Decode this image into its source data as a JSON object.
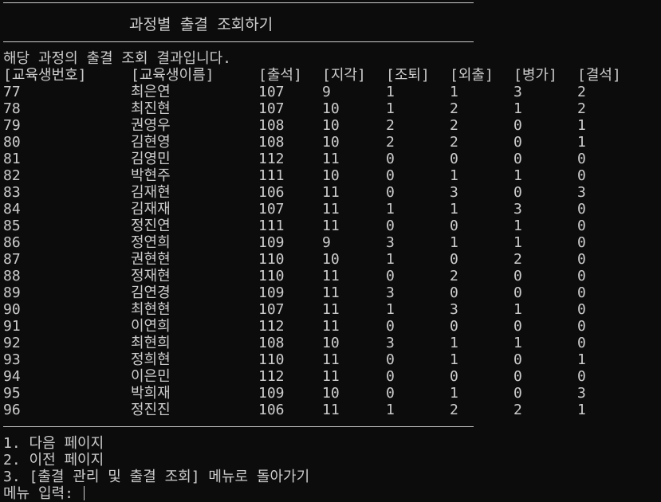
{
  "header": {
    "title": "과정별 출결 조회하기",
    "result_message": "해당 과정의 출결 조회 결과입니다."
  },
  "table": {
    "columns": [
      "[교육생번호]",
      "[교육생이름]",
      "[출석]",
      "[지각]",
      "[조퇴]",
      "[외출]",
      "[병가]",
      "[결석]"
    ],
    "rows": [
      [
        "77",
        "최은연",
        "107",
        "9",
        "1",
        "1",
        "3",
        "2"
      ],
      [
        "78",
        "최진현",
        "107",
        "10",
        "1",
        "2",
        "1",
        "2"
      ],
      [
        "79",
        "권영우",
        "108",
        "10",
        "2",
        "2",
        "0",
        "1"
      ],
      [
        "80",
        "김현영",
        "108",
        "10",
        "2",
        "2",
        "0",
        "1"
      ],
      [
        "81",
        "김영민",
        "112",
        "11",
        "0",
        "0",
        "0",
        "0"
      ],
      [
        "82",
        "박현주",
        "111",
        "10",
        "0",
        "1",
        "1",
        "0"
      ],
      [
        "83",
        "김재현",
        "106",
        "11",
        "0",
        "3",
        "0",
        "3"
      ],
      [
        "84",
        "김재재",
        "107",
        "11",
        "1",
        "1",
        "3",
        "0"
      ],
      [
        "85",
        "정진연",
        "111",
        "11",
        "0",
        "0",
        "1",
        "0"
      ],
      [
        "86",
        "정연희",
        "109",
        "9",
        "3",
        "1",
        "1",
        "0"
      ],
      [
        "87",
        "권현현",
        "110",
        "10",
        "1",
        "0",
        "2",
        "0"
      ],
      [
        "88",
        "정재현",
        "110",
        "11",
        "0",
        "2",
        "0",
        "0"
      ],
      [
        "89",
        "김연경",
        "109",
        "11",
        "3",
        "0",
        "0",
        "0"
      ],
      [
        "90",
        "최현현",
        "107",
        "11",
        "1",
        "3",
        "1",
        "0"
      ],
      [
        "91",
        "이연희",
        "112",
        "11",
        "0",
        "0",
        "0",
        "0"
      ],
      [
        "92",
        "최현희",
        "108",
        "10",
        "3",
        "1",
        "1",
        "0"
      ],
      [
        "93",
        "정희현",
        "110",
        "11",
        "0",
        "1",
        "0",
        "1"
      ],
      [
        "94",
        "이은민",
        "112",
        "11",
        "0",
        "0",
        "0",
        "0"
      ],
      [
        "95",
        "박희재",
        "109",
        "10",
        "0",
        "1",
        "0",
        "3"
      ],
      [
        "96",
        "정진진",
        "106",
        "11",
        "1",
        "2",
        "2",
        "1"
      ]
    ]
  },
  "menu": {
    "items": [
      "1. 다음 페이지",
      "2. 이전 페이지",
      "3. [출결 관리 및 출결 조회] 메뉴로 돌아가기"
    ],
    "prompt": "메뉴 입력: "
  },
  "colors": {
    "background": "#0c0c0c",
    "text": "#cccccc"
  }
}
